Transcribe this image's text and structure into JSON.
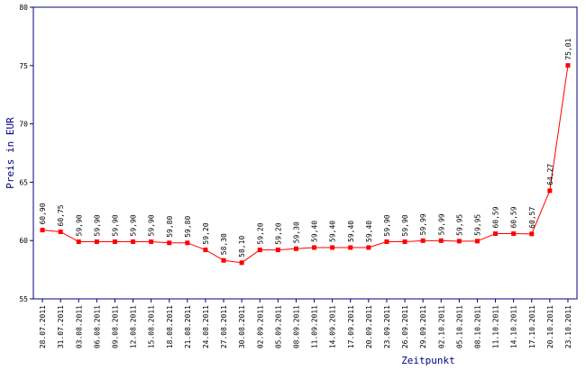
{
  "chart_data": {
    "type": "line",
    "title": "",
    "xlabel": "Zeitpunkt",
    "ylabel": "Preis in EUR",
    "ylim": [
      55,
      80
    ],
    "yticks": [
      55,
      60,
      65,
      70,
      75,
      80
    ],
    "grid": false,
    "categories": [
      "28.07.2011",
      "31.07.2011",
      "03.08.2011",
      "06.08.2011",
      "09.08.2011",
      "12.08.2011",
      "15.08.2011",
      "18.08.2011",
      "21.08.2011",
      "24.08.2011",
      "27.08.2011",
      "30.08.2011",
      "02.09.2011",
      "05.09.2011",
      "08.09.2011",
      "11.09.2011",
      "14.09.2011",
      "17.09.2011",
      "20.09.2011",
      "23.09.2011",
      "26.09.2011",
      "29.09.2011",
      "02.10.2011",
      "05.10.2011",
      "08.10.2011",
      "11.10.2011",
      "14.10.2011",
      "17.10.2011",
      "20.10.2011",
      "23.10.2011"
    ],
    "values": [
      60.9,
      60.75,
      59.9,
      59.9,
      59.9,
      59.9,
      59.9,
      59.8,
      59.8,
      59.2,
      58.3,
      58.1,
      59.2,
      59.2,
      59.3,
      59.4,
      59.4,
      59.4,
      59.4,
      59.9,
      59.9,
      59.99,
      59.99,
      59.95,
      59.95,
      60.59,
      60.59,
      60.57,
      64.27,
      75.01
    ],
    "value_labels": [
      "60,90",
      "60,75",
      "59,90",
      "59,90",
      "59,90",
      "59,90",
      "59,90",
      "59,80",
      "59,80",
      "59,20",
      "58,30",
      "58,10",
      "59,20",
      "59,20",
      "59,30",
      "59,40",
      "59,40",
      "59,40",
      "59,40",
      "59,90",
      "59,90",
      "59,99",
      "59,99",
      "59,95",
      "59,95",
      "60,59",
      "60,59",
      "60,57",
      "64,27",
      "75,01"
    ],
    "colors": {
      "line": "#ff0000",
      "marker": "#ff0000",
      "axis": "#000080",
      "axis_title": "#000080"
    }
  }
}
